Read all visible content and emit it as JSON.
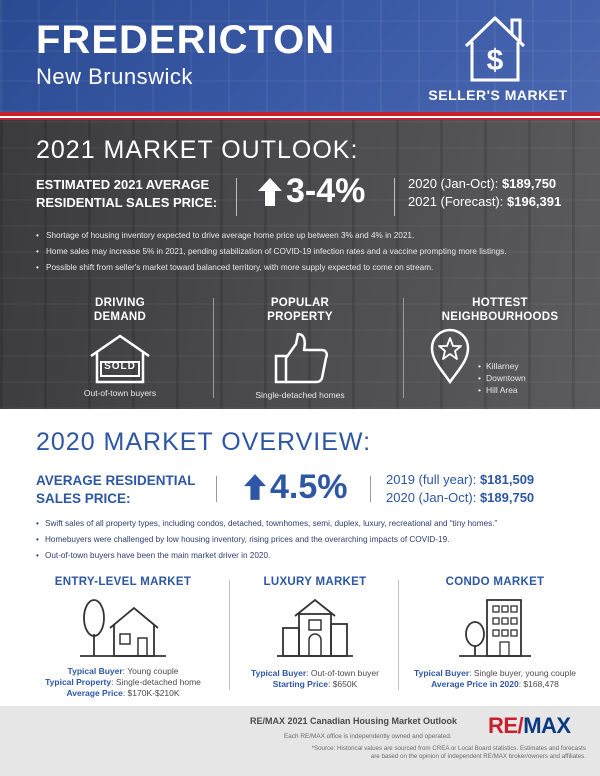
{
  "header": {
    "city": "FREDERICTON",
    "province": "New Brunswick",
    "market_badge": "SELLER'S MARKET"
  },
  "outlook": {
    "title": "2021 MARKET OUTLOOK:",
    "estimate_label": "ESTIMATED 2021 AVERAGE RESIDENTIAL SALES PRICE:",
    "change": "3-4%",
    "year1_label": "2020 (Jan-Oct): ",
    "year1_value": "$189,750",
    "year2_label": "2021 (Forecast): ",
    "year2_value": "$196,391",
    "bullets": [
      "Shortage of housing inventory expected to drive average home price up between 3% and 4% in 2021.",
      "Home sales may increase 5% in 2021, pending stabilization of COVID-19 infection rates and a vaccine prompting more listings.",
      "Possible shift from seller's market toward balanced territory, with more supply expected to come on stream."
    ],
    "driving": {
      "h1": "DRIVING",
      "h2": "DEMAND",
      "sold": "SOLD",
      "caption": "Out-of-town buyers"
    },
    "popular": {
      "h1": "POPULAR",
      "h2": "PROPERTY",
      "caption": "Single-detached homes"
    },
    "hottest": {
      "h1": "HOTTEST",
      "h2": "NEIGHBOURHOODS",
      "items": [
        "Killarney",
        "Downtown",
        "Hill Area"
      ]
    }
  },
  "overview": {
    "title": "2020 MARKET OVERVIEW:",
    "avg_label_1": "AVERAGE RESIDENTIAL",
    "avg_label_2": "SALES PRICE:",
    "change": "4.5%",
    "year1_label": "2019 (full year): ",
    "year1_value": "$181,509",
    "year2_label": "2020 (Jan-Oct): ",
    "year2_value": "$189,750",
    "bullets": [
      "Swift sales of all property types, including condos, detached, townhomes, semi, duplex, luxury, recreational and “tiny homes.”",
      "Homebuyers were challenged by low housing inventory, rising prices and the overarching impacts of COVID-19.",
      "Out-of-town buyers have been the main market driver in 2020."
    ],
    "entry": {
      "title": "ENTRY-LEVEL MARKET",
      "buyer_label": "Typical Buyer",
      "buyer_value": ": Young couple",
      "property_label": "Typical Property",
      "property_value": ": Single-detached home",
      "price_label": "Average Price",
      "price_value": ": $170K-$210K"
    },
    "luxury": {
      "title": "LUXURY MARKET",
      "buyer_label": "Typical Buyer",
      "buyer_value": ": Out-of-town buyer",
      "price_label": "Starting Price",
      "price_value": ": $650K"
    },
    "condo": {
      "title": "CONDO MARKET",
      "buyer_label": "Typical Buyer",
      "buyer_value": ": Single buyer, young couple",
      "price_label": "Average Price in 2020",
      "price_value": ": $168,478"
    }
  },
  "footer": {
    "title": "RE/MAX 2021 Canadian Housing Market Outlook",
    "sub": "Each RE/MAX office is independently owned and operated.",
    "source1": "*Source: Historical values are sourced from CREA or Local Board statistics. Estimates and forecasts",
    "source2": "are based on the opinion of independent RE/MAX broker/owners and affiliates.",
    "logo_a": "RE/",
    "logo_b": "MAX"
  },
  "colors": {
    "blue": "#2d57a4",
    "red": "#c8202f",
    "dark": "#444446"
  }
}
